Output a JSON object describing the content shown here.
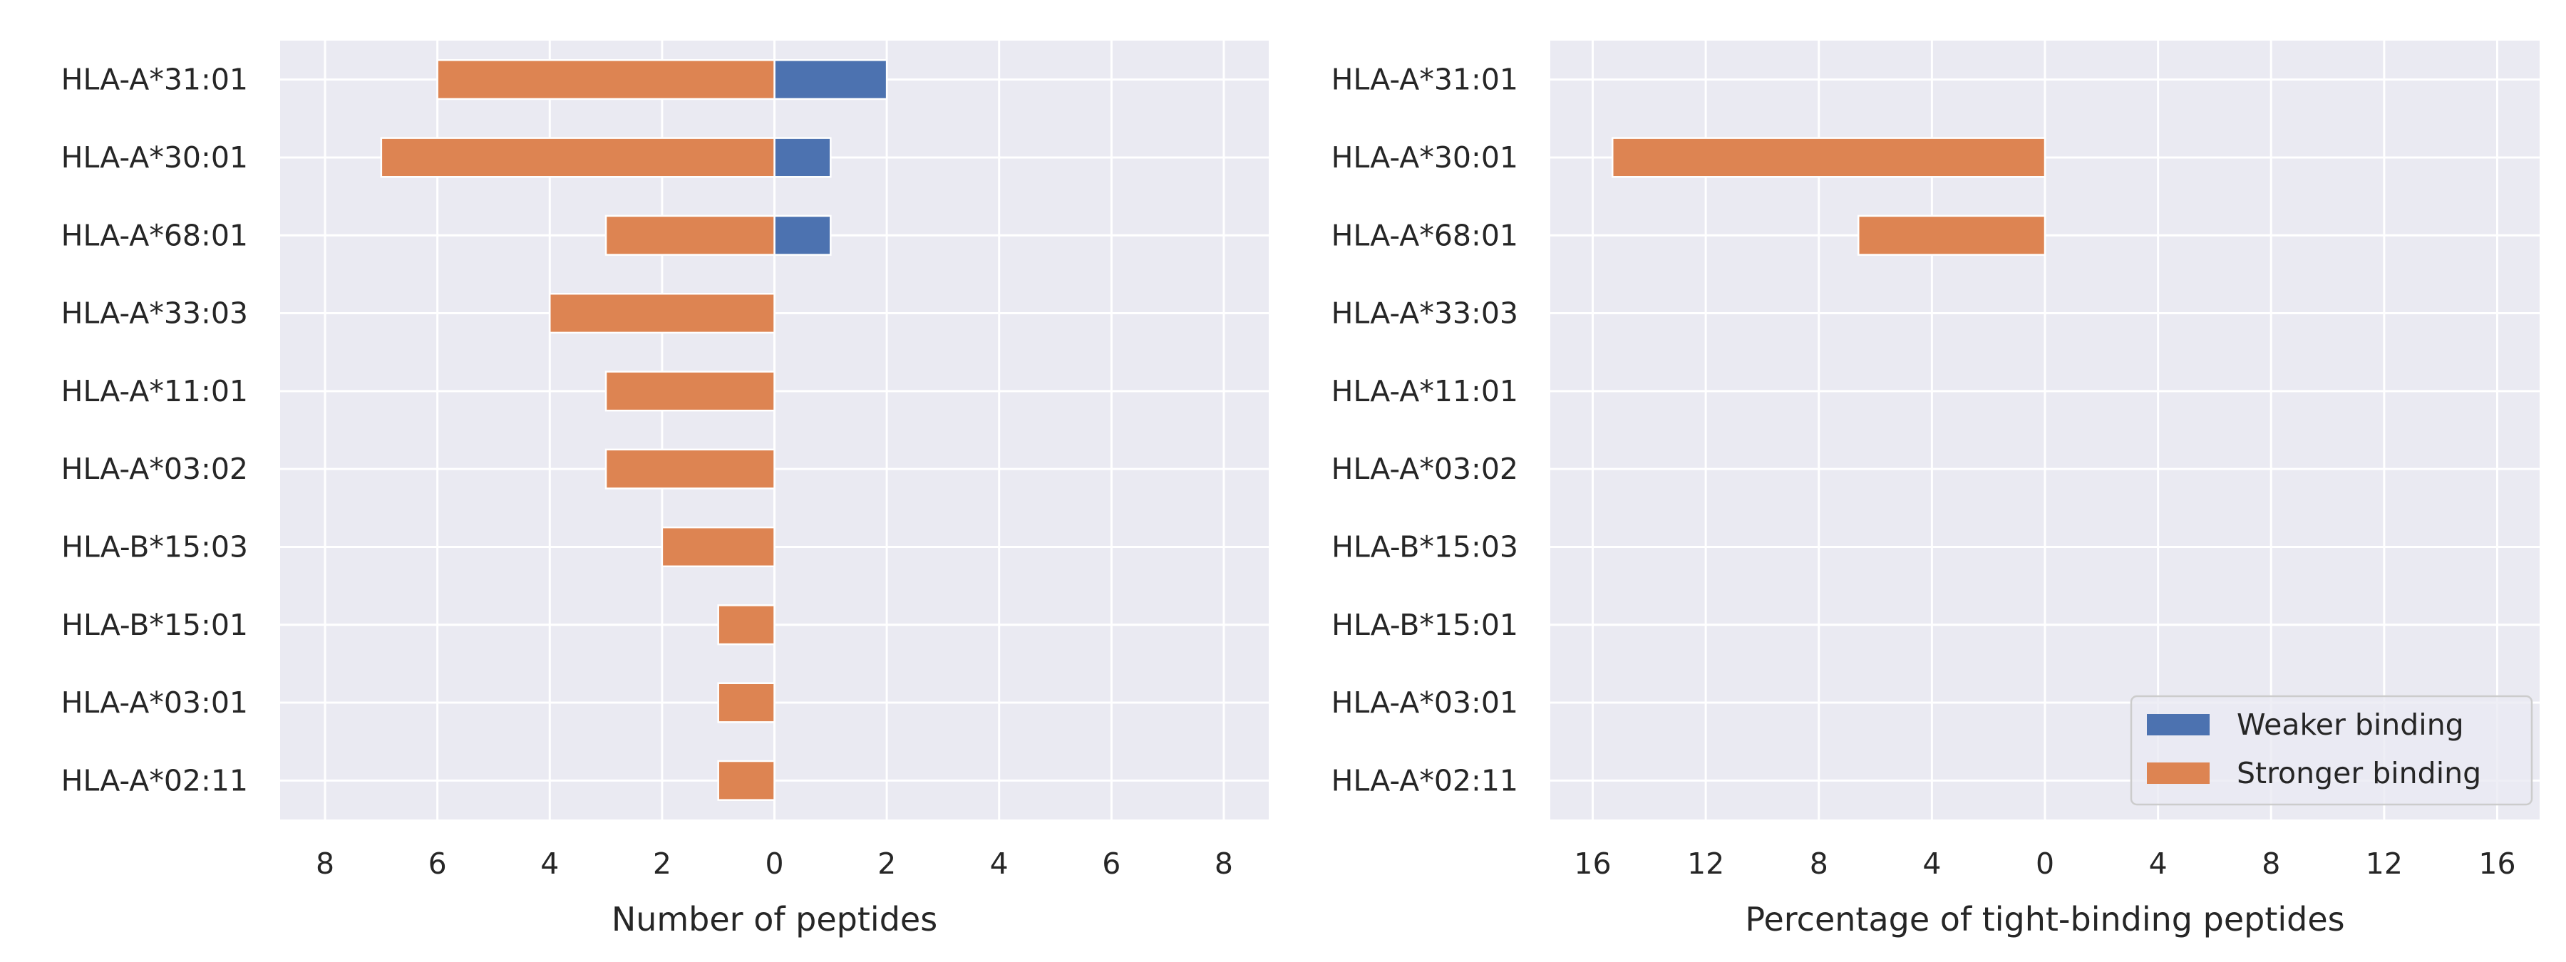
{
  "chart_data": [
    {
      "type": "bar",
      "orientation": "horizontal",
      "diverging": true,
      "title": "",
      "xlabel": "Number of peptides",
      "ylabel": "",
      "xlim": [
        -8.8,
        8.8
      ],
      "xticks": [
        -8,
        -6,
        -4,
        -2,
        0,
        2,
        4,
        6,
        8
      ],
      "xtick_labels": [
        "8",
        "6",
        "4",
        "2",
        "0",
        "2",
        "4",
        "6",
        "8"
      ],
      "grid": true,
      "categories": [
        "HLA-A*31:01",
        "HLA-A*30:01",
        "HLA-A*68:01",
        "HLA-A*33:03",
        "HLA-A*11:01",
        "HLA-A*03:02",
        "HLA-B*15:03",
        "HLA-B*15:01",
        "HLA-A*03:01",
        "HLA-A*02:11"
      ],
      "series": [
        {
          "name": "Weaker binding",
          "side": "right",
          "color": "#4c72b0",
          "values": [
            2,
            1,
            1,
            0,
            0,
            0,
            0,
            0,
            0,
            0
          ]
        },
        {
          "name": "Stronger binding",
          "side": "left",
          "color": "#dd8452",
          "values": [
            6,
            7,
            3,
            4,
            3,
            3,
            2,
            1,
            1,
            1
          ]
        }
      ]
    },
    {
      "type": "bar",
      "orientation": "horizontal",
      "diverging": true,
      "title": "",
      "xlabel": "Percentage of tight-binding peptides",
      "ylabel": "",
      "xlim": [
        -17.5,
        17.5
      ],
      "xticks": [
        -16,
        -12,
        -8,
        -4,
        0,
        4,
        8,
        12,
        16
      ],
      "xtick_labels": [
        "16",
        "12",
        "8",
        "4",
        "0",
        "4",
        "8",
        "12",
        "16"
      ],
      "grid": true,
      "legend_position": "bottom-right",
      "categories": [
        "HLA-A*31:01",
        "HLA-A*30:01",
        "HLA-A*68:01",
        "HLA-A*33:03",
        "HLA-A*11:01",
        "HLA-A*03:02",
        "HLA-B*15:03",
        "HLA-B*15:01",
        "HLA-A*03:01",
        "HLA-A*02:11"
      ],
      "series": [
        {
          "name": "Weaker binding",
          "side": "right",
          "color": "#4c72b0",
          "values": [
            0,
            0,
            0,
            0,
            0,
            0,
            0,
            0,
            0,
            0
          ]
        },
        {
          "name": "Stronger binding",
          "side": "left",
          "color": "#dd8452",
          "values": [
            0,
            15.3,
            6.6,
            0,
            0,
            0,
            0,
            0,
            0,
            0
          ]
        }
      ]
    }
  ],
  "style": {
    "panel_background": "#eaeaf2",
    "grid_color": "#ffffff"
  }
}
